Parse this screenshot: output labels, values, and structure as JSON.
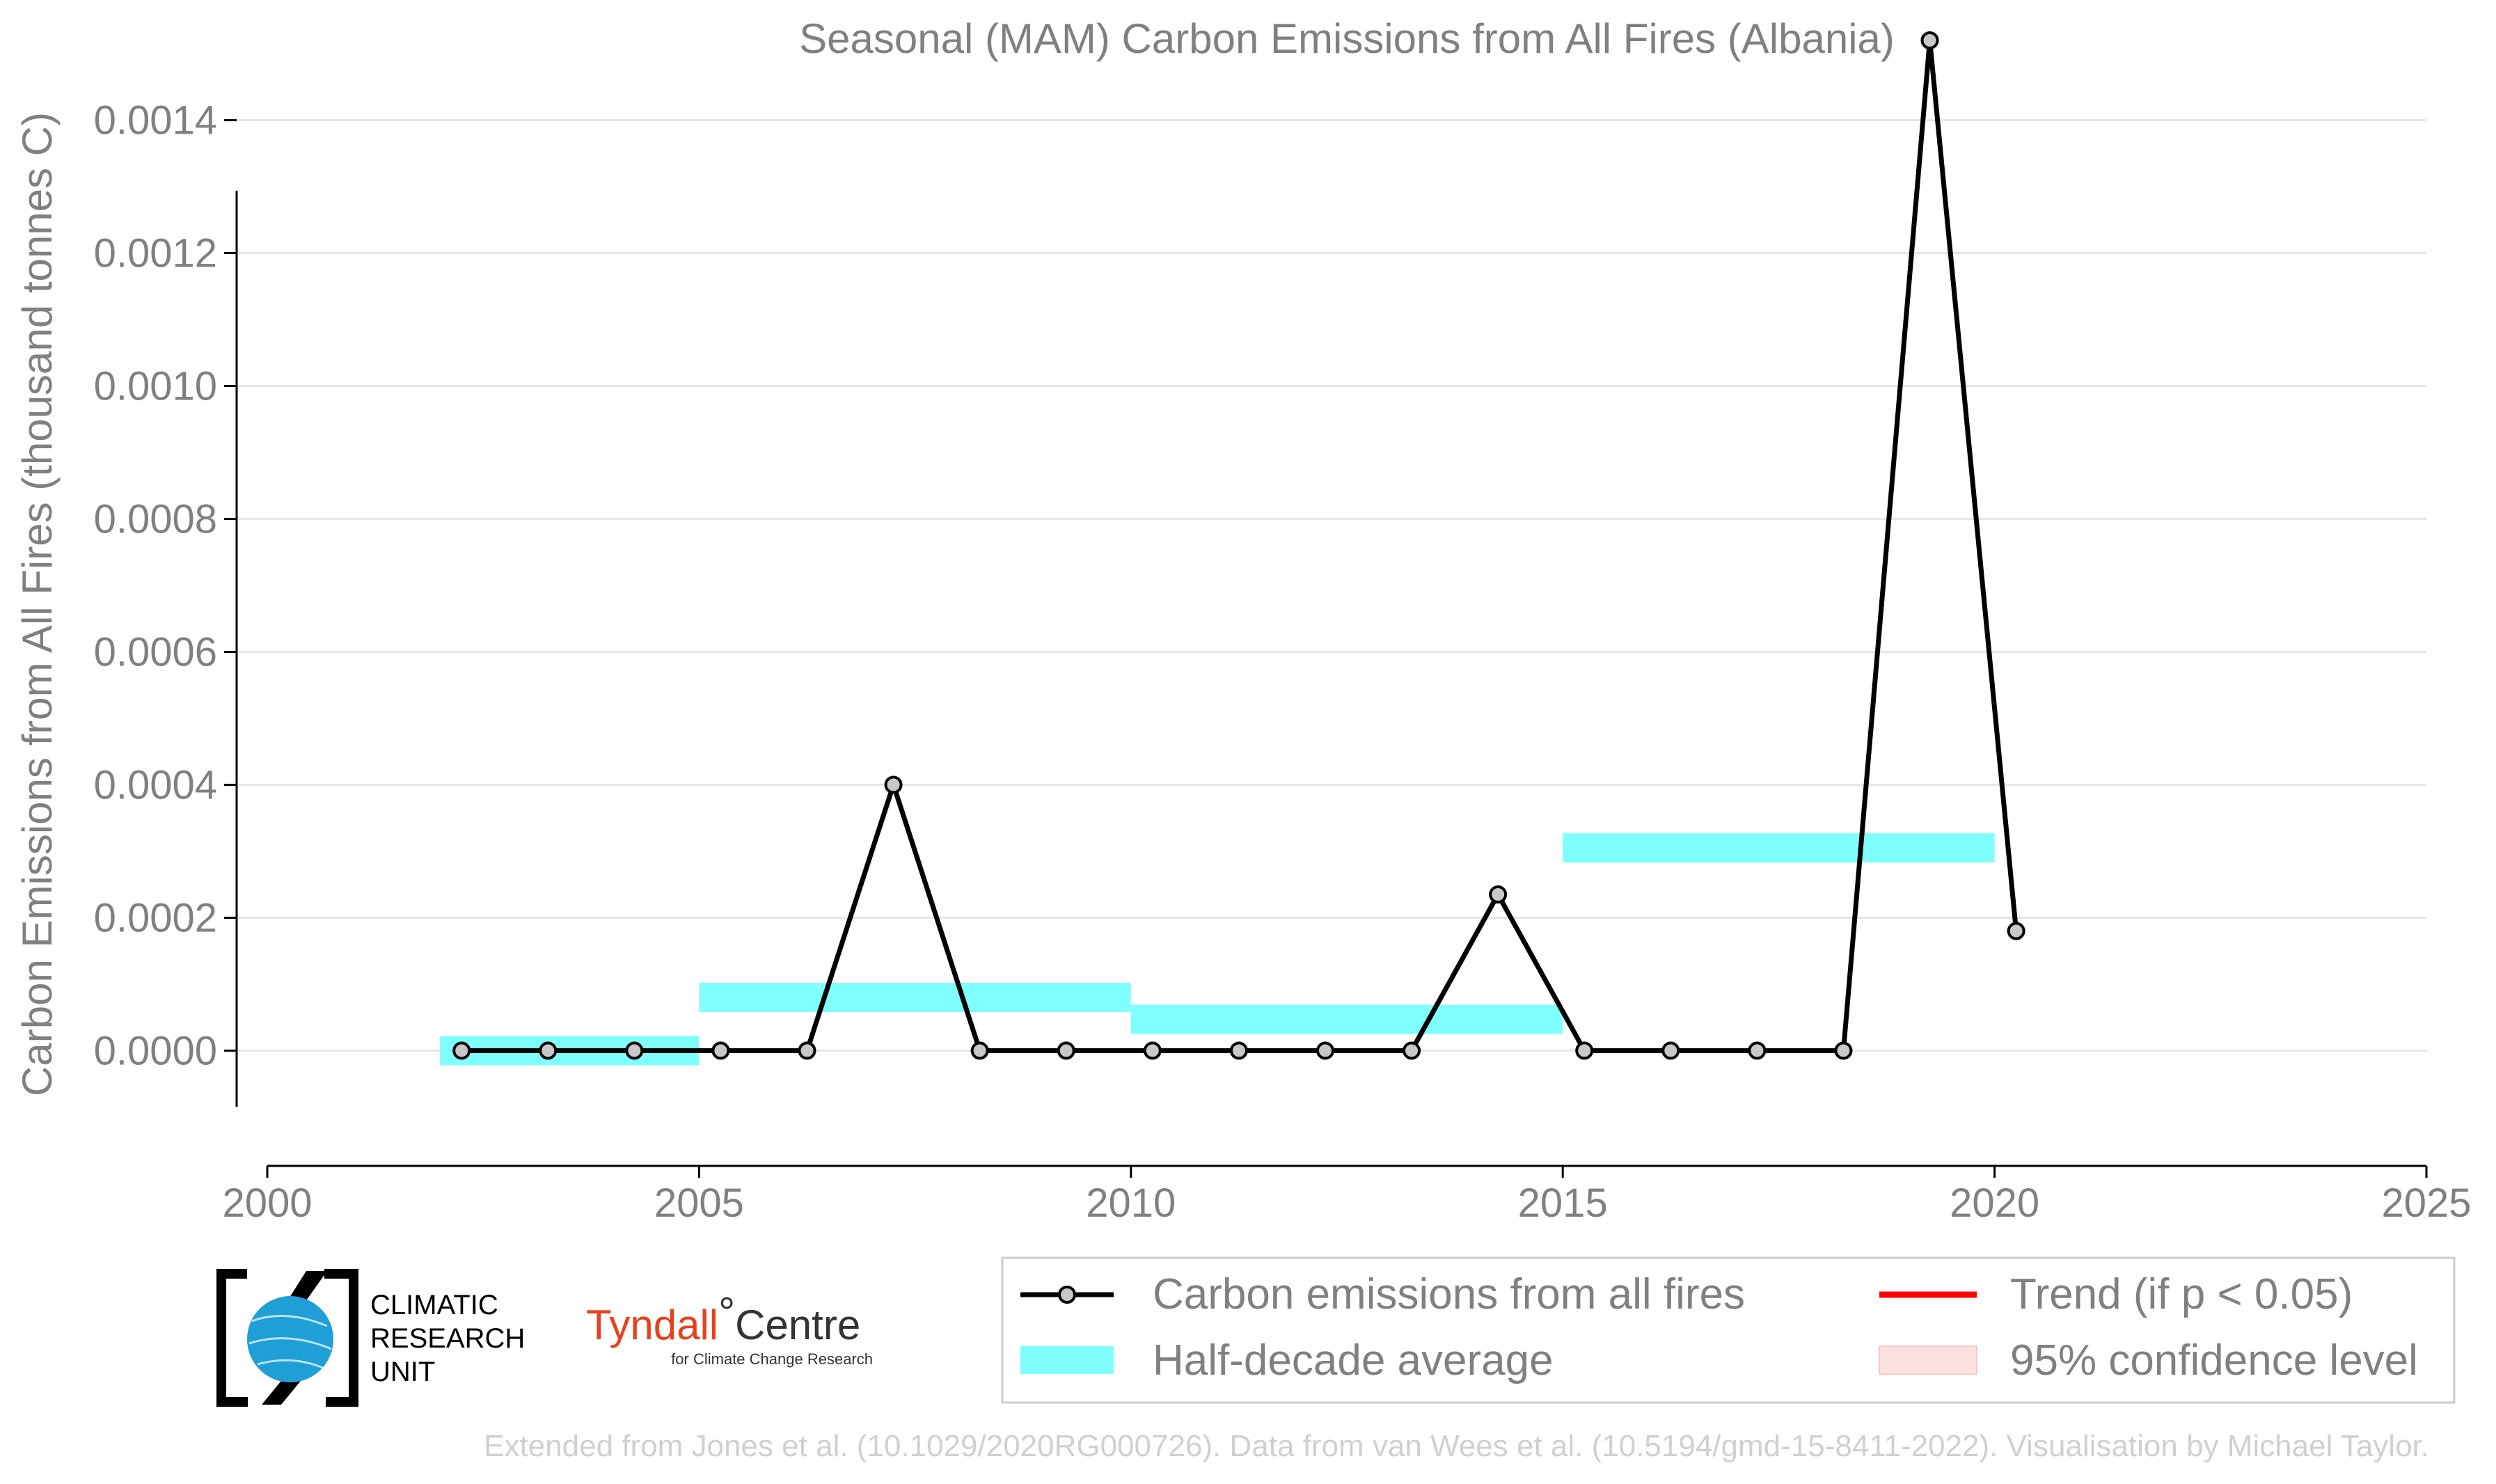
{
  "chart_data": {
    "type": "line",
    "title": "Seasonal (MAM) Carbon Emissions from All Fires (Albania)",
    "xlabel": "",
    "ylabel": "Carbon Emissions from All Fires (thousand tonnes C)",
    "xlim": [
      2000,
      2025
    ],
    "ylim": [
      -0.00012,
      0.00152
    ],
    "x_ticks": [
      2000,
      2005,
      2010,
      2015,
      2020,
      2025
    ],
    "x_tick_labels": [
      "2000",
      "2005",
      "2010",
      "2015",
      "2020",
      "2025"
    ],
    "y_ticks": [
      0.0,
      0.0002,
      0.0004,
      0.0006,
      0.0008,
      0.001,
      0.0012,
      0.0014
    ],
    "y_tick_labels": [
      "0.0000",
      "0.0002",
      "0.0004",
      "0.0006",
      "0.0008",
      "0.0010",
      "0.0012",
      "0.0014"
    ],
    "grid": true,
    "series": [
      {
        "name": "Carbon emissions from all fires",
        "color": "#000000",
        "marker_fill": "#c8c8c8",
        "x": [
          2002.25,
          2003.25,
          2004.25,
          2005.25,
          2006.25,
          2007.25,
          2008.25,
          2009.25,
          2010.25,
          2011.25,
          2012.25,
          2013.25,
          2014.25,
          2015.25,
          2016.25,
          2017.25,
          2018.25,
          2019.25,
          2020.25
        ],
        "values": [
          0.0,
          0.0,
          0.0,
          0.0,
          0.0,
          0.0004,
          0.0,
          0.0,
          0.0,
          0.0,
          0.0,
          0.0,
          0.000235,
          0.0,
          0.0,
          0.0,
          0.0,
          0.00152,
          0.00018
        ]
      }
    ],
    "half_decade_average": {
      "name": "Half-decade average",
      "color": "#80ffff",
      "segments": [
        {
          "x_start": 2002,
          "x_end": 2005,
          "value": 0.0
        },
        {
          "x_start": 2005,
          "x_end": 2010,
          "value": 8e-05
        },
        {
          "x_start": 2010,
          "x_end": 2015,
          "value": 4.7e-05
        },
        {
          "x_start": 2015,
          "x_end": 2020,
          "value": 0.000305
        }
      ],
      "band_halfwidth": 2.2e-05
    },
    "legend": {
      "placement": "bottom-right",
      "entries": [
        {
          "label": "Carbon emissions from all fires",
          "kind": "line-marker",
          "color": "#000000"
        },
        {
          "label": "Trend (if p < 0.05)",
          "kind": "line",
          "color": "#ff0000"
        },
        {
          "label": "Half-decade average",
          "kind": "band",
          "color": "#80ffff"
        },
        {
          "label": "95% confidence level",
          "kind": "band",
          "color": "#fce0e0"
        }
      ]
    }
  },
  "logos": {
    "cru": [
      "CLIMATIC",
      "RESEARCH",
      "UNIT"
    ],
    "tyndall_main": "Tyndall",
    "tyndall_degree": "°",
    "tyndall_centre": "Centre",
    "tyndall_sub": "for Climate Change Research"
  },
  "credit": "Extended from Jones et al. (10.1029/2020RG000726). Data from van Wees et al. (10.5194/gmd-15-8411-2022). Visualisation by Michael Taylor."
}
